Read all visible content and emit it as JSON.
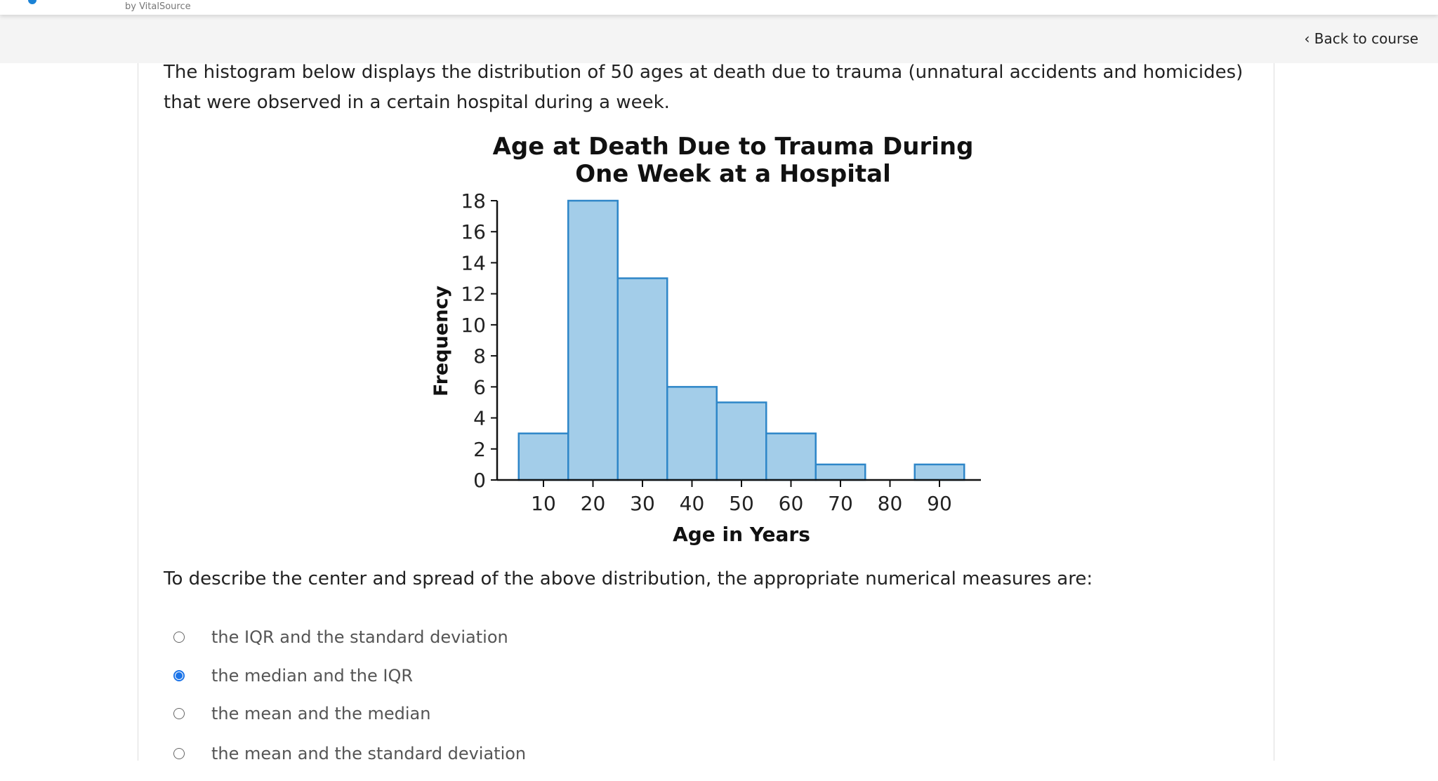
{
  "header": {
    "brand": "by VitalSource",
    "back_label": "‹ Back to course"
  },
  "question": {
    "intro": "The histogram below displays the distribution of 50 ages at death due to trauma (unnatural accidents and homicides) that were observed in a certain hospital during a week.",
    "prompt": "To describe the center and spread of the above distribution, the appropriate numerical measures are:",
    "options": [
      {
        "label": "the IQR and the standard deviation",
        "selected": false
      },
      {
        "label": "the median and the IQR",
        "selected": true
      },
      {
        "label": "the mean and the median",
        "selected": false
      },
      {
        "label": "the mean and the standard deviation",
        "selected": false
      }
    ]
  },
  "chart_data": {
    "type": "bar",
    "title": [
      "Age at Death Due to Trauma During",
      "One Week at a Hospital"
    ],
    "xlabel": "Age in Years",
    "ylabel": "Frequency",
    "categories": [
      "10",
      "20",
      "30",
      "40",
      "50",
      "60",
      "70",
      "80",
      "90"
    ],
    "bins": [
      [
        5,
        15
      ],
      [
        15,
        25
      ],
      [
        25,
        35
      ],
      [
        35,
        45
      ],
      [
        45,
        55
      ],
      [
        55,
        65
      ],
      [
        65,
        75
      ],
      [
        75,
        85
      ],
      [
        85,
        95
      ]
    ],
    "values": [
      3,
      18,
      13,
      6,
      5,
      3,
      1,
      0,
      1
    ],
    "yticks": [
      0,
      2,
      4,
      6,
      8,
      10,
      12,
      14,
      16,
      18
    ],
    "ylim": [
      0,
      18
    ],
    "xlim": [
      5,
      95
    ],
    "grid": false,
    "bar_fill": "#a3cde9",
    "bar_stroke": "#2e86c8"
  }
}
